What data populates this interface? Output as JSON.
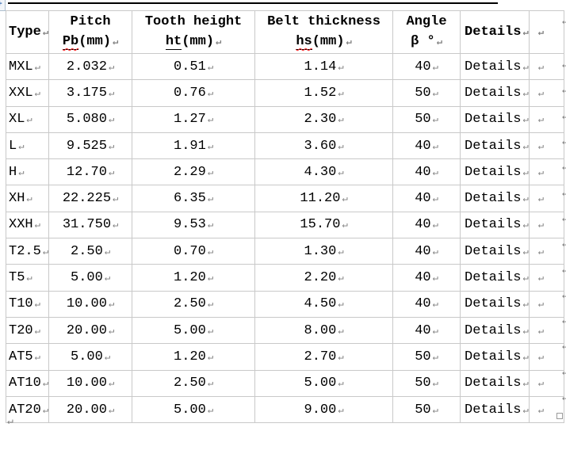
{
  "colors": {
    "table_border": "#c9c9c9",
    "text": "#000000",
    "formatting_mark": "#7f7f7f",
    "spellcheck_squiggle": "#ff2a2a",
    "top_rule": "#000000",
    "handle_accent": "#3b6fb5"
  },
  "glyphs": {
    "paragraph_mark": "↵",
    "move_handle_plus": "+"
  },
  "table": {
    "header": {
      "type": "Type",
      "pitch_line1": "Pitch",
      "pitch_sub": "Pb",
      "pitch_unit": "(mm)",
      "tooth_line1": "Tooth height",
      "tooth_sub": "ht",
      "tooth_unit": "(mm)",
      "belt_line1": "Belt thickness",
      "belt_sub": "hs",
      "belt_unit": "(mm)",
      "angle_line1": "Angle",
      "angle_line2": "β °",
      "details": "Details"
    },
    "rows": [
      {
        "type": "MXL",
        "pitch": "2.032",
        "tooth": "0.51",
        "belt": "1.14",
        "angle": "40",
        "details": "Details"
      },
      {
        "type": "XXL",
        "pitch": "3.175",
        "tooth": "0.76",
        "belt": "1.52",
        "angle": "50",
        "details": "Details"
      },
      {
        "type": "XL",
        "pitch": "5.080",
        "tooth": "1.27",
        "belt": "2.30",
        "angle": "50",
        "details": "Details"
      },
      {
        "type": "L",
        "pitch": "9.525",
        "tooth": "1.91",
        "belt": "3.60",
        "angle": "40",
        "details": "Details"
      },
      {
        "type": "H",
        "pitch": "12.70",
        "tooth": "2.29",
        "belt": "4.30",
        "angle": "40",
        "details": "Details"
      },
      {
        "type": "XH",
        "pitch": "22.225",
        "tooth": "6.35",
        "belt": "11.20",
        "angle": "40",
        "details": "Details"
      },
      {
        "type": "XXH",
        "pitch": "31.750",
        "tooth": "9.53",
        "belt": "15.70",
        "angle": "40",
        "details": "Details"
      },
      {
        "type": "T2.5",
        "pitch": "2.50",
        "tooth": "0.70",
        "belt": "1.30",
        "angle": "40",
        "details": "Details"
      },
      {
        "type": "T5",
        "pitch": "5.00",
        "tooth": "1.20",
        "belt": "2.20",
        "angle": "40",
        "details": "Details"
      },
      {
        "type": "T10",
        "pitch": "10.00",
        "tooth": "2.50",
        "belt": "4.50",
        "angle": "40",
        "details": "Details"
      },
      {
        "type": "T20",
        "pitch": "20.00",
        "tooth": "5.00",
        "belt": "8.00",
        "angle": "40",
        "details": "Details"
      },
      {
        "type": "AT5",
        "pitch": "5.00",
        "tooth": "1.20",
        "belt": "2.70",
        "angle": "50",
        "details": "Details"
      },
      {
        "type": "AT10",
        "pitch": "10.00",
        "tooth": "2.50",
        "belt": "5.00",
        "angle": "50",
        "details": "Details"
      },
      {
        "type": "AT20",
        "pitch": "20.00",
        "tooth": "5.00",
        "belt": "9.00",
        "angle": "50",
        "details": "Details"
      }
    ]
  }
}
